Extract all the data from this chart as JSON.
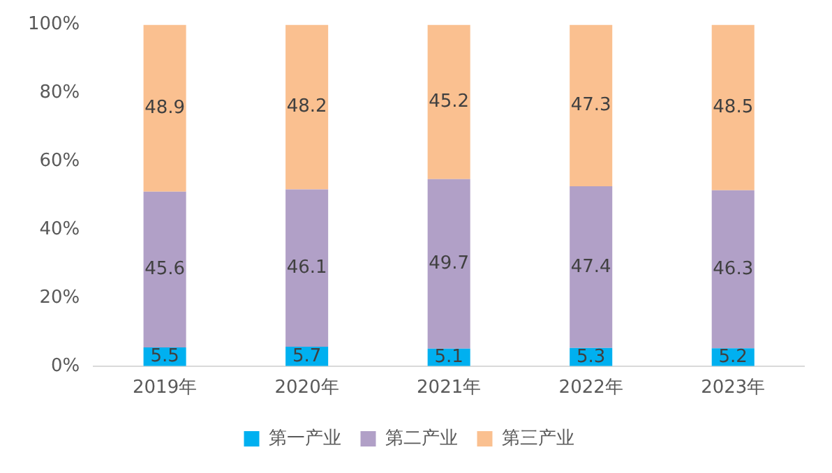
{
  "chart_data": {
    "type": "bar",
    "stacked": true,
    "categories": [
      "2019年",
      "2020年",
      "2021年",
      "2022年",
      "2023年"
    ],
    "series": [
      {
        "name": "第一产业",
        "color": "#00b0f0",
        "values": [
          5.5,
          5.7,
          5.1,
          5.3,
          5.2
        ]
      },
      {
        "name": "第二产业",
        "color": "#b1a0c7",
        "values": [
          45.6,
          46.1,
          49.7,
          47.4,
          46.3
        ]
      },
      {
        "name": "第三产业",
        "color": "#fac090",
        "values": [
          48.9,
          48.2,
          45.2,
          47.3,
          48.5
        ]
      }
    ],
    "ylim": [
      0,
      100
    ],
    "yticks": [
      {
        "value": 0,
        "label": "0%"
      },
      {
        "value": 20,
        "label": "20%"
      },
      {
        "value": 40,
        "label": "40%"
      },
      {
        "value": 60,
        "label": "60%"
      },
      {
        "value": 80,
        "label": "80%"
      },
      {
        "value": 100,
        "label": "100%"
      }
    ],
    "data_labels": true,
    "legend": "bottom",
    "grid": false
  }
}
